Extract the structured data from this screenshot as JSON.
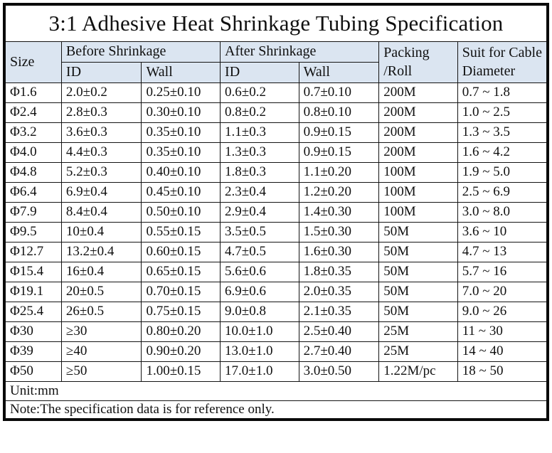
{
  "title": "3:1 Adhesive Heat Shrinkage Tubing Specification",
  "colors": {
    "header_bg": "#dbe5f1",
    "border": "#141414",
    "text": "#101010"
  },
  "table": {
    "header": {
      "size": "Size",
      "before_shrinkage": "Before Shrinkage",
      "after_shrinkage": "After Shrinkage",
      "before_id": "ID",
      "before_wall": "Wall",
      "after_id": "ID",
      "after_wall": "Wall",
      "packing": "Packing\n/Roll",
      "suit": "Suit for Cable\nDiameter"
    },
    "columns": [
      "size",
      "before-id",
      "before-wall",
      "after-id",
      "after-wall",
      "packing-roll",
      "suit-cable-diameter"
    ],
    "rows": [
      [
        "Φ1.6",
        "2.0±0.2",
        "0.25±0.10",
        "0.6±0.2",
        "0.7±0.10",
        "200M",
        "0.7 ~ 1.8"
      ],
      [
        "Φ2.4",
        "2.8±0.3",
        "0.30±0.10",
        "0.8±0.2",
        "0.8±0.10",
        "200M",
        "1.0 ~ 2.5"
      ],
      [
        "Φ3.2",
        "3.6±0.3",
        "0.35±0.10",
        "1.1±0.3",
        "0.9±0.15",
        "200M",
        "1.3 ~ 3.5"
      ],
      [
        "Φ4.0",
        "4.4±0.3",
        "0.35±0.10",
        "1.3±0.3",
        "0.9±0.15",
        "200M",
        "1.6 ~ 4.2"
      ],
      [
        "Φ4.8",
        "5.2±0.3",
        "0.40±0.10",
        "1.8±0.3",
        "1.1±0.20",
        "100M",
        "1.9 ~ 5.0"
      ],
      [
        "Φ6.4",
        "6.9±0.4",
        "0.45±0.10",
        "2.3±0.4",
        "1.2±0.20",
        "100M",
        "2.5 ~ 6.9"
      ],
      [
        "Φ7.9",
        "8.4±0.4",
        "0.50±0.10",
        "2.9±0.4",
        "1.4±0.30",
        "100M",
        "3.0 ~ 8.0"
      ],
      [
        "Φ9.5",
        "10±0.4",
        "0.55±0.15",
        "3.5±0.5",
        "1.5±0.30",
        "50M",
        "3.6 ~ 10"
      ],
      [
        "Φ12.7",
        "13.2±0.4",
        "0.60±0.15",
        "4.7±0.5",
        "1.6±0.30",
        "50M",
        "4.7 ~ 13"
      ],
      [
        "Φ15.4",
        "16±0.4",
        "0.65±0.15",
        "5.6±0.6",
        "1.8±0.35",
        "50M",
        "5.7 ~ 16"
      ],
      [
        "Φ19.1",
        "20±0.5",
        "0.70±0.15",
        "6.9±0.6",
        "2.0±0.35",
        "50M",
        "7.0 ~ 20"
      ],
      [
        "Φ25.4",
        "26±0.5",
        "0.75±0.15",
        "9.0±0.8",
        "2.1±0.35",
        "50M",
        "9.0 ~ 26"
      ],
      [
        "Φ30",
        "≥30",
        "0.80±0.20",
        "10.0±1.0",
        "2.5±0.40",
        "25M",
        "11 ~ 30"
      ],
      [
        "Φ39",
        "≥40",
        "0.90±0.20",
        "13.0±1.0",
        "2.7±0.40",
        "25M",
        "14 ~ 40"
      ],
      [
        "Φ50",
        "≥50",
        "1.00±0.15",
        "17.0±1.0",
        "3.0±0.50",
        "1.22M/pc",
        "18 ~ 50"
      ]
    ],
    "footer": {
      "unit": "Unit:mm",
      "note": "Note:The specification data is for reference only."
    }
  }
}
